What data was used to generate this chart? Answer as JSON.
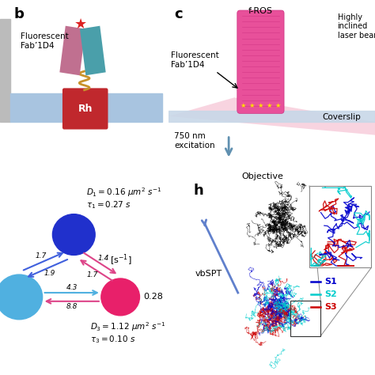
{
  "panel_b": {
    "label": "b",
    "fab_text": "Fluorescent\nFab’1D4",
    "rh_text": "Rh",
    "membrane_color": "#a8c4e0",
    "rh_color": "#c0282d",
    "fab1_color": "#c07090",
    "fab2_color": "#4a9faa",
    "linker_color": "#c8922a"
  },
  "panel_c": {
    "label": "c",
    "fros_text": "f-ROS",
    "fab_text": "Fluorescent\nFab’1D4",
    "highly_text": "Highly\ninclined\nlaser beam",
    "excitation_text": "750 nm\nexcitation",
    "coverslip_text": "Coverslip",
    "objective_text": "Objective",
    "cylinder_color": "#e8509a",
    "stars_color": "#ffdd00",
    "beam_color": "#f4b8cc",
    "coverslip_color": "#c8d8e8",
    "arrow_color": "#a0b8cc"
  },
  "panel_diff": {
    "blue_circle_color": "#2030cc",
    "cyan_circle_color": "#50b0e0",
    "pink_circle_color": "#e8206a",
    "arrow_blue_color": "#4060dd",
    "arrow_pink_color": "#dd4488",
    "arrow_cyan_color": "#50b0e0",
    "rate_14": "1.4",
    "rate_17": "1.7",
    "rate_19": "1.9",
    "rate_43": "4.3",
    "rate_88": "8.8",
    "val_028": "0.28"
  },
  "panel_h": {
    "label": "h",
    "vbspt_text": "vbSPT",
    "s1_color": "#0000cc",
    "s2_color": "#00cccc",
    "s3_color": "#cc0000"
  },
  "bg_color": "#ffffff",
  "text_color": "#000000"
}
